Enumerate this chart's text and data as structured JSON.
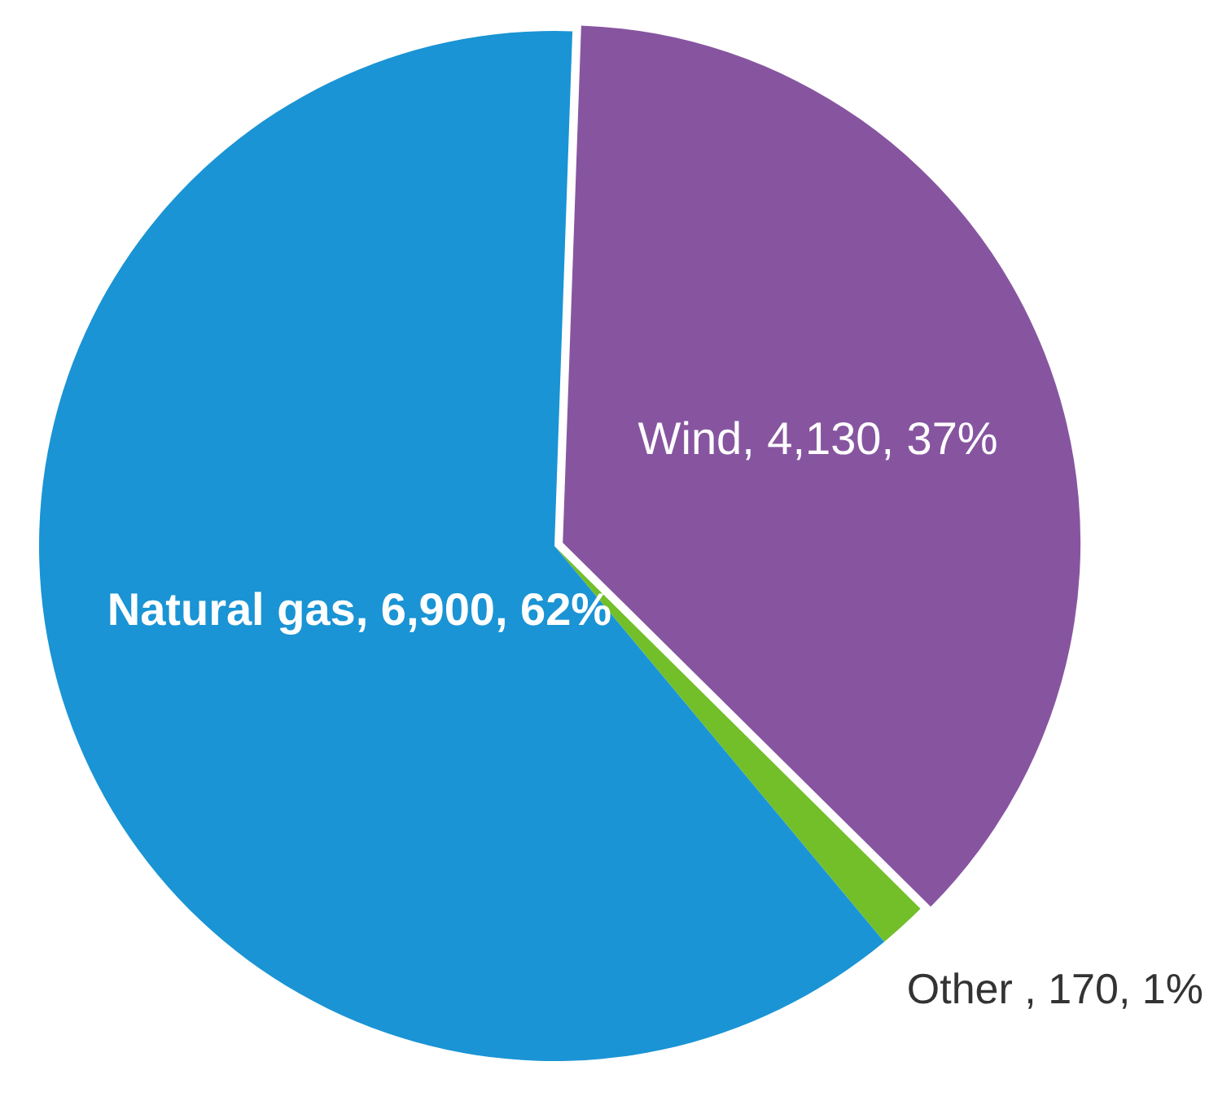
{
  "chart_data": {
    "type": "pie",
    "categories": [
      "Wind",
      "Other ",
      "Natural gas"
    ],
    "values": [
      4130,
      170,
      6900
    ],
    "colors": [
      "#8755a0",
      "#72bf2a",
      "#1a94d4"
    ],
    "value_labels": [
      "4,130, 37%",
      "170, 1%",
      "6,900, 62%"
    ],
    "legend": false
  }
}
